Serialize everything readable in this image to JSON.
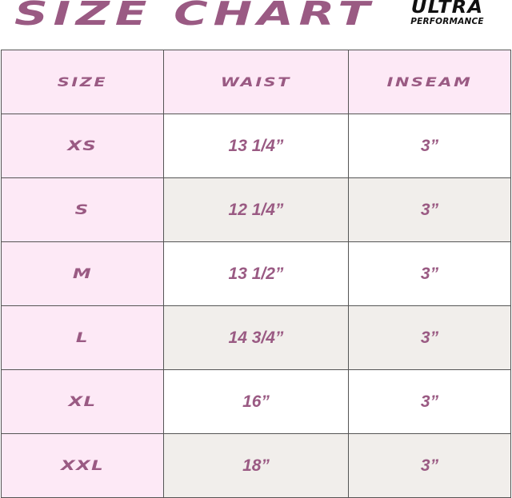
{
  "title": "SIZE CHART",
  "logo": {
    "line1": "ULTRA",
    "line2": "PERFORMANCE"
  },
  "colors": {
    "accent": "#9a5a83",
    "header_bg": "#fde9f6",
    "alt_row_bg": "#f1eeeb",
    "border": "#555555"
  },
  "table": {
    "headers": [
      "SIZE",
      "WAIST",
      "INSEAM"
    ],
    "rows": [
      {
        "size": "XS",
        "waist": "13 1/4”",
        "inseam": "3”"
      },
      {
        "size": "S",
        "waist": "12 1/4”",
        "inseam": "3”"
      },
      {
        "size": "M",
        "waist": "13 1/2”",
        "inseam": "3”"
      },
      {
        "size": "L",
        "waist": "14 3/4”",
        "inseam": "3”"
      },
      {
        "size": "XL",
        "waist": "16”",
        "inseam": "3”"
      },
      {
        "size": "XXL",
        "waist": "18”",
        "inseam": "3”"
      }
    ]
  }
}
